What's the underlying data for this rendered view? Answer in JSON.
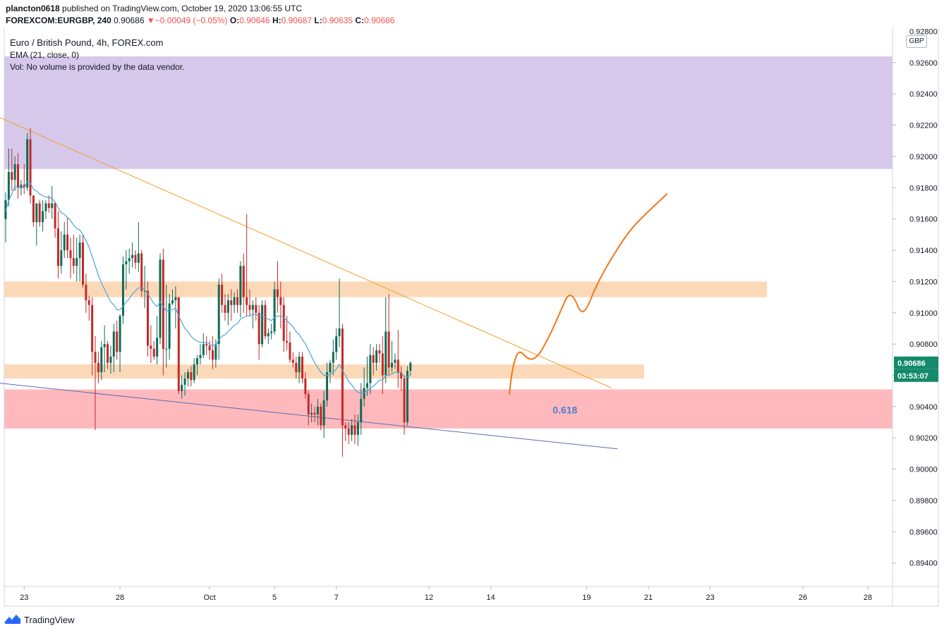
{
  "header": {
    "publisher": "plancton0618",
    "published_text": "published on TradingView.com, October 19, 2020 13:06:55 UTC",
    "symbol_line": "FOREXCOM:EURGBP, 240",
    "last": "0.90686",
    "change": "−0.00049 (−0.05%)",
    "open_label": "O:",
    "open": "0.90646",
    "high_label": "H:",
    "high": "0.90687",
    "low_label": "L:",
    "low": "0.90635",
    "close_label": "C:",
    "close": "0.90686"
  },
  "legend": {
    "title": "Euro / British Pound, 4h, FOREX.com",
    "ema": "EMA (21, close, 0)",
    "vol": "Vol: No volume is provided by the data vendor."
  },
  "currency_button": "GBP",
  "price_badge": {
    "price": "0.90686",
    "countdown": "03:53:07"
  },
  "footer": {
    "brand": "TradingView"
  },
  "colors": {
    "up": "#26a69a",
    "down": "#ef5350",
    "candle_up": "#0f6b57",
    "candle_down": "#c62828",
    "ema": "#4aa8d8",
    "zone_purple": "#d6c8ea",
    "zone_orange": "#fbd9b8",
    "zone_red": "#ffb9bd",
    "trendline": "#f59f2a",
    "support_line": "#5b6bb8",
    "projection": "#ef7a1a",
    "fib_label": "#4c7fd1",
    "badge_bg": "#138a6a"
  },
  "chart_data": {
    "type": "candlestick",
    "y_axis": {
      "range": [
        0.8925,
        0.9282
      ],
      "ticks": [
        "0.92600",
        "0.92400",
        "0.92200",
        "0.92000",
        "0.91800",
        "0.91600",
        "0.91400",
        "0.91200",
        "0.91000",
        "0.90800",
        "0.90600",
        "0.90400",
        "0.90200",
        "0.90000",
        "0.89800",
        "0.89600",
        "0.89400"
      ],
      "top_tick_partial": "0.92800"
    },
    "x_axis": {
      "ticks": [
        {
          "label": "23",
          "i": 6
        },
        {
          "label": "28",
          "i": 37
        },
        {
          "label": "Oct",
          "i": 66
        },
        {
          "label": "5",
          "i": 87
        },
        {
          "label": "7",
          "i": 107
        },
        {
          "label": "12",
          "i": 137
        },
        {
          "label": "14",
          "i": 157
        },
        {
          "label": "19",
          "i": 188
        },
        {
          "label": "21",
          "i": 208
        },
        {
          "label": "23",
          "i": 228
        },
        {
          "label": "26",
          "i": 258
        },
        {
          "label": "28",
          "i": 279
        }
      ]
    },
    "candles": [
      [
        0.916,
        0.9177,
        0.9145,
        0.9172
      ],
      [
        0.9172,
        0.9205,
        0.9168,
        0.919
      ],
      [
        0.919,
        0.9205,
        0.9178,
        0.9185
      ],
      [
        0.9185,
        0.92,
        0.9178,
        0.9195
      ],
      [
        0.9195,
        0.9202,
        0.9173,
        0.918
      ],
      [
        0.918,
        0.9185,
        0.9175,
        0.9182
      ],
      [
        0.9182,
        0.9195,
        0.9176,
        0.918
      ],
      [
        0.918,
        0.9215,
        0.9178,
        0.9211
      ],
      [
        0.9211,
        0.9218,
        0.917,
        0.9175
      ],
      [
        0.9175,
        0.9175,
        0.9155,
        0.9158
      ],
      [
        0.9158,
        0.917,
        0.9143,
        0.917
      ],
      [
        0.917,
        0.9172,
        0.9155,
        0.9158
      ],
      [
        0.9158,
        0.9172,
        0.9152,
        0.9165
      ],
      [
        0.9165,
        0.9172,
        0.916,
        0.917
      ],
      [
        0.917,
        0.9175,
        0.9164,
        0.9167
      ],
      [
        0.9167,
        0.9181,
        0.916,
        0.917
      ],
      [
        0.917,
        0.9171,
        0.9148,
        0.9154
      ],
      [
        0.9154,
        0.9165,
        0.9122,
        0.913
      ],
      [
        0.913,
        0.9152,
        0.9125,
        0.914
      ],
      [
        0.914,
        0.9158,
        0.9135,
        0.915
      ],
      [
        0.915,
        0.9161,
        0.9135,
        0.914
      ],
      [
        0.914,
        0.9148,
        0.9122,
        0.9135
      ],
      [
        0.9135,
        0.915,
        0.9125,
        0.913
      ],
      [
        0.913,
        0.9148,
        0.912,
        0.9135
      ],
      [
        0.9135,
        0.915,
        0.912,
        0.9145
      ],
      [
        0.9145,
        0.915,
        0.9116,
        0.9118
      ],
      [
        0.9118,
        0.9125,
        0.91,
        0.9108
      ],
      [
        0.9108,
        0.9111,
        0.9095,
        0.9105
      ],
      [
        0.9105,
        0.911,
        0.906,
        0.9075
      ],
      [
        0.9075,
        0.9085,
        0.9025,
        0.9068
      ],
      [
        0.9068,
        0.9075,
        0.9055,
        0.9062
      ],
      [
        0.9062,
        0.9082,
        0.9057,
        0.9078
      ],
      [
        0.9078,
        0.9092,
        0.9062,
        0.908
      ],
      [
        0.908,
        0.9082,
        0.9064,
        0.9068
      ],
      [
        0.9068,
        0.9079,
        0.9061,
        0.9072
      ],
      [
        0.9072,
        0.9093,
        0.9062,
        0.9088
      ],
      [
        0.9088,
        0.9095,
        0.907,
        0.9075
      ],
      [
        0.9075,
        0.9099,
        0.9062,
        0.9098
      ],
      [
        0.9098,
        0.9136,
        0.9093,
        0.9131
      ],
      [
        0.9131,
        0.914,
        0.9115,
        0.9133
      ],
      [
        0.9133,
        0.9141,
        0.9125,
        0.9135
      ],
      [
        0.9135,
        0.9145,
        0.9129,
        0.9137
      ],
      [
        0.9137,
        0.914,
        0.9128,
        0.9132
      ],
      [
        0.9132,
        0.9158,
        0.9126,
        0.9138
      ],
      [
        0.9138,
        0.914,
        0.911,
        0.9114
      ],
      [
        0.9114,
        0.913,
        0.9103,
        0.9114
      ],
      [
        0.9114,
        0.912,
        0.9072,
        0.9079
      ],
      [
        0.9079,
        0.9092,
        0.9068,
        0.9077
      ],
      [
        0.9077,
        0.9082,
        0.907,
        0.9072
      ],
      [
        0.9072,
        0.9098,
        0.9067,
        0.9084
      ],
      [
        0.9084,
        0.9138,
        0.908,
        0.9134
      ],
      [
        0.9134,
        0.9141,
        0.906,
        0.9077
      ],
      [
        0.9077,
        0.9118,
        0.9065,
        0.9077
      ],
      [
        0.9077,
        0.9112,
        0.907,
        0.9106
      ],
      [
        0.9106,
        0.9115,
        0.9105,
        0.9108
      ],
      [
        0.9108,
        0.9117,
        0.909,
        0.911
      ],
      [
        0.911,
        0.911,
        0.9048,
        0.905
      ],
      [
        0.905,
        0.906,
        0.9045,
        0.9054
      ],
      [
        0.9054,
        0.9062,
        0.9047,
        0.9058
      ],
      [
        0.9058,
        0.9064,
        0.9053,
        0.9062
      ],
      [
        0.9062,
        0.9066,
        0.9053,
        0.9057
      ],
      [
        0.9057,
        0.9071,
        0.9055,
        0.9067
      ],
      [
        0.9067,
        0.9073,
        0.906,
        0.9071
      ],
      [
        0.9071,
        0.908,
        0.9067,
        0.9073
      ],
      [
        0.9073,
        0.9087,
        0.9071,
        0.908
      ],
      [
        0.908,
        0.9085,
        0.9073,
        0.9079
      ],
      [
        0.9079,
        0.9082,
        0.907,
        0.9076
      ],
      [
        0.9076,
        0.9085,
        0.9064,
        0.907
      ],
      [
        0.907,
        0.9083,
        0.9065,
        0.908
      ],
      [
        0.908,
        0.9122,
        0.907,
        0.9118
      ],
      [
        0.9118,
        0.9125,
        0.91,
        0.9105
      ],
      [
        0.9105,
        0.9112,
        0.9095,
        0.91
      ],
      [
        0.91,
        0.9112,
        0.9092,
        0.9108
      ],
      [
        0.9108,
        0.9115,
        0.9095,
        0.9105
      ],
      [
        0.9105,
        0.9113,
        0.91,
        0.911
      ],
      [
        0.911,
        0.9115,
        0.91,
        0.9105
      ],
      [
        0.9105,
        0.9133,
        0.9097,
        0.913
      ],
      [
        0.913,
        0.9138,
        0.91,
        0.911
      ],
      [
        0.911,
        0.9163,
        0.9098,
        0.9105
      ],
      [
        0.9105,
        0.9115,
        0.9098,
        0.9102
      ],
      [
        0.9102,
        0.9108,
        0.909,
        0.9105
      ],
      [
        0.9105,
        0.911,
        0.9095,
        0.91
      ],
      [
        0.91,
        0.9105,
        0.907,
        0.908
      ],
      [
        0.908,
        0.9108,
        0.9078,
        0.9105
      ],
      [
        0.9105,
        0.9108,
        0.9083,
        0.9085
      ],
      [
        0.9085,
        0.909,
        0.908,
        0.9087
      ],
      [
        0.9087,
        0.9093,
        0.9083,
        0.9088
      ],
      [
        0.9088,
        0.912,
        0.9086,
        0.9115
      ],
      [
        0.9115,
        0.9133,
        0.91,
        0.911
      ],
      [
        0.911,
        0.912,
        0.909,
        0.9105
      ],
      [
        0.9105,
        0.911,
        0.9075,
        0.9082
      ],
      [
        0.9082,
        0.9098,
        0.9076,
        0.9081
      ],
      [
        0.9081,
        0.9088,
        0.9068,
        0.907
      ],
      [
        0.907,
        0.9075,
        0.9065,
        0.9068
      ],
      [
        0.9068,
        0.9072,
        0.9058,
        0.9062
      ],
      [
        0.9062,
        0.9075,
        0.9055,
        0.9072
      ],
      [
        0.9072,
        0.9075,
        0.9055,
        0.9058
      ],
      [
        0.9058,
        0.9062,
        0.9045,
        0.9048
      ],
      [
        0.9048,
        0.905,
        0.9028,
        0.9035
      ],
      [
        0.9035,
        0.9042,
        0.903,
        0.9036
      ],
      [
        0.9036,
        0.904,
        0.903,
        0.9035
      ],
      [
        0.9035,
        0.9045,
        0.9028,
        0.904
      ],
      [
        0.904,
        0.9042,
        0.9025,
        0.9028
      ],
      [
        0.9028,
        0.905,
        0.902,
        0.9044
      ],
      [
        0.9044,
        0.9068,
        0.904,
        0.9062
      ],
      [
        0.9062,
        0.907,
        0.9055,
        0.9068
      ],
      [
        0.9068,
        0.9083,
        0.906,
        0.9075
      ],
      [
        0.9075,
        0.909,
        0.907,
        0.9085
      ],
      [
        0.9085,
        0.9122,
        0.9078,
        0.909
      ],
      [
        0.909,
        0.9093,
        0.9008,
        0.9028
      ],
      [
        0.9028,
        0.903,
        0.9018,
        0.9026
      ],
      [
        0.9026,
        0.903,
        0.9016,
        0.9022
      ],
      [
        0.9022,
        0.9032,
        0.9018,
        0.9028
      ],
      [
        0.9028,
        0.9035,
        0.9016,
        0.9022
      ],
      [
        0.9022,
        0.9035,
        0.9015,
        0.903
      ],
      [
        0.903,
        0.9055,
        0.9022,
        0.9045
      ],
      [
        0.9045,
        0.9065,
        0.904,
        0.9052
      ],
      [
        0.9052,
        0.9072,
        0.9047,
        0.9055
      ],
      [
        0.9055,
        0.908,
        0.9048,
        0.9073
      ],
      [
        0.9073,
        0.9078,
        0.906,
        0.9068
      ],
      [
        0.9068,
        0.908,
        0.9063,
        0.9076
      ],
      [
        0.9076,
        0.908,
        0.9068,
        0.9074
      ],
      [
        0.9074,
        0.9085,
        0.9048,
        0.906
      ],
      [
        0.906,
        0.911,
        0.9055,
        0.9088
      ],
      [
        0.9088,
        0.9112,
        0.906,
        0.9065
      ],
      [
        0.9065,
        0.9082,
        0.9062,
        0.9068
      ],
      [
        0.9068,
        0.9074,
        0.9064,
        0.907
      ],
      [
        0.907,
        0.9089,
        0.9052,
        0.9062
      ],
      [
        0.9062,
        0.9066,
        0.905,
        0.9058
      ],
      [
        0.9058,
        0.906,
        0.9022,
        0.903
      ],
      [
        0.903,
        0.9066,
        0.9028,
        0.9063
      ],
      [
        0.9063,
        0.9069,
        0.906,
        0.9068
      ]
    ],
    "ema_21": [
      0.9165,
      0.9172,
      0.9176,
      0.9181,
      0.918,
      0.918,
      0.918,
      0.9184,
      0.9183,
      0.9179,
      0.9178,
      0.9176,
      0.9175,
      0.9174,
      0.9174,
      0.9173,
      0.9171,
      0.9167,
      0.9164,
      0.9163,
      0.9161,
      0.9159,
      0.9156,
      0.9154,
      0.9153,
      0.915,
      0.9146,
      0.9142,
      0.9136,
      0.913,
      0.9124,
      0.9119,
      0.9115,
      0.9111,
      0.9107,
      0.9105,
      0.9102,
      0.9102,
      0.9104,
      0.9107,
      0.9109,
      0.9112,
      0.9114,
      0.9116,
      0.9116,
      0.9115,
      0.9112,
      0.9109,
      0.9106,
      0.9104,
      0.9107,
      0.9104,
      0.9101,
      0.9102,
      0.9102,
      0.9103,
      0.9098,
      0.9094,
      0.909,
      0.9088,
      0.9085,
      0.9083,
      0.9082,
      0.9081,
      0.9081,
      0.9081,
      0.908,
      0.9079,
      0.9079,
      0.9083,
      0.9085,
      0.9086,
      0.9088,
      0.909,
      0.9092,
      0.9093,
      0.9096,
      0.9097,
      0.9098,
      0.9098,
      0.9099,
      0.9099,
      0.9098,
      0.9098,
      0.9097,
      0.9096,
      0.9095,
      0.9097,
      0.9098,
      0.9098,
      0.9097,
      0.9095,
      0.9093,
      0.9091,
      0.9088,
      0.9086,
      0.9083,
      0.908,
      0.9076,
      0.9072,
      0.9068,
      0.9065,
      0.9062,
      0.906,
      0.906,
      0.9061,
      0.9062,
      0.9064,
      0.9067,
      0.9063,
      0.906,
      0.9056,
      0.9054,
      0.9051,
      0.9049,
      0.9049,
      0.9049,
      0.905,
      0.9052,
      0.9053,
      0.9055,
      0.9057,
      0.9057,
      0.906,
      0.906,
      0.9061,
      0.9062,
      0.9062,
      0.9062,
      0.9059,
      0.9059,
      0.906
    ],
    "zones": [
      {
        "name": "purple-zone",
        "from": 0.9192,
        "to": 0.9264
      },
      {
        "name": "orange-zone-upper",
        "from": 0.911,
        "to": 0.912
      },
      {
        "name": "orange-zone-lower",
        "from": 0.9058,
        "to": 0.9067
      },
      {
        "name": "red-zone",
        "from": 0.9026,
        "to": 0.9051
      }
    ],
    "trendlines": [
      {
        "name": "descending-resistance",
        "from": [
          -2,
          0.9225
        ],
        "to": [
          196,
          0.9052
        ]
      },
      {
        "name": "lower-support",
        "from": [
          -2,
          0.9055
        ],
        "to": [
          198,
          0.9013
        ]
      }
    ],
    "projection_path": [
      [
        163,
        0.9048
      ],
      [
        164,
        0.9065
      ],
      [
        166,
        0.9077
      ],
      [
        169,
        0.907
      ],
      [
        172,
        0.9071
      ],
      [
        176,
        0.9085
      ],
      [
        180,
        0.9103
      ],
      [
        182,
        0.9112
      ],
      [
        184,
        0.911
      ],
      [
        186,
        0.91
      ],
      [
        188,
        0.9102
      ],
      [
        191,
        0.9117
      ],
      [
        196,
        0.9135
      ],
      [
        202,
        0.9153
      ],
      [
        208,
        0.9165
      ],
      [
        214,
        0.9176
      ]
    ],
    "annotations": [
      {
        "text": "0.618",
        "at": [
          177,
          0.9038
        ]
      }
    ]
  }
}
